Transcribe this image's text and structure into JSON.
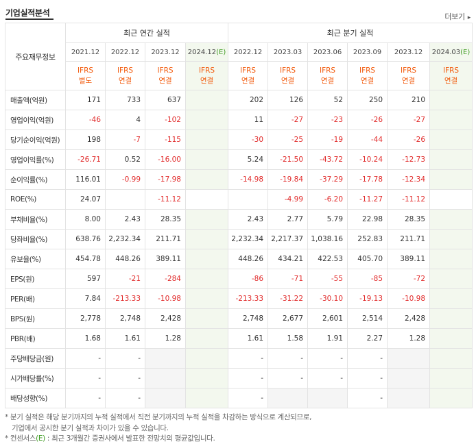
{
  "header": {
    "title": "기업실적분석",
    "more_label": "더보기",
    "more_arrow": "▸"
  },
  "table": {
    "corner_label": "주요재무정보",
    "groups": {
      "annual": "최근 연간 실적",
      "quarter": "최근 분기 실적"
    },
    "periods": [
      {
        "year": "2021.12",
        "est": ""
      },
      {
        "year": "2022.12",
        "est": ""
      },
      {
        "year": "2023.12",
        "est": ""
      },
      {
        "year": "2024.12",
        "est": "(E)"
      },
      {
        "year": "2022.12",
        "est": ""
      },
      {
        "year": "2023.03",
        "est": ""
      },
      {
        "year": "2023.06",
        "est": ""
      },
      {
        "year": "2023.09",
        "est": ""
      },
      {
        "year": "2023.12",
        "est": ""
      },
      {
        "year": "2024.03",
        "est": "(E)"
      }
    ],
    "ifrs": [
      {
        "l1": "IFRS",
        "l2": "별도"
      },
      {
        "l1": "IFRS",
        "l2": "연결"
      },
      {
        "l1": "IFRS",
        "l2": "연결"
      },
      {
        "l1": "IFRS",
        "l2": "연결"
      },
      {
        "l1": "IFRS",
        "l2": "연결"
      },
      {
        "l1": "IFRS",
        "l2": "연결"
      },
      {
        "l1": "IFRS",
        "l2": "연결"
      },
      {
        "l1": "IFRS",
        "l2": "연결"
      },
      {
        "l1": "IFRS",
        "l2": "연결"
      },
      {
        "l1": "IFRS",
        "l2": "연결"
      }
    ],
    "rows": [
      {
        "label": "매출액(억원)",
        "values": [
          "171",
          "733",
          "637",
          "",
          "202",
          "126",
          "52",
          "250",
          "210",
          ""
        ]
      },
      {
        "label": "영업이익(억원)",
        "values": [
          "-46",
          "4",
          "-102",
          "",
          "11",
          "-27",
          "-23",
          "-26",
          "-27",
          ""
        ]
      },
      {
        "label": "당기순이익(억원)",
        "values": [
          "198",
          "-7",
          "-115",
          "",
          "-30",
          "-25",
          "-19",
          "-44",
          "-26",
          ""
        ]
      },
      {
        "label": "영업이익률(%)",
        "values": [
          "-26.71",
          "0.52",
          "-16.00",
          "",
          "5.24",
          "-21.50",
          "-43.72",
          "-10.24",
          "-12.73",
          ""
        ]
      },
      {
        "label": "순이익률(%)",
        "values": [
          "116.01",
          "-0.99",
          "-17.98",
          "",
          "-14.98",
          "-19.84",
          "-37.29",
          "-17.78",
          "-12.34",
          ""
        ]
      },
      {
        "label": "ROE(%)",
        "values": [
          "24.07",
          "",
          "-11.12",
          "",
          "",
          "-4.99",
          "-6.20",
          "-11.27",
          "-11.12",
          ""
        ]
      },
      {
        "label": "부채비율(%)",
        "values": [
          "8.00",
          "2.43",
          "28.35",
          "",
          "2.43",
          "2.77",
          "5.79",
          "22.98",
          "28.35",
          ""
        ]
      },
      {
        "label": "당좌비율(%)",
        "values": [
          "638.76",
          "2,232.34",
          "211.71",
          "",
          "2,232.34",
          "2,217.37",
          "1,038.16",
          "252.83",
          "211.71",
          ""
        ]
      },
      {
        "label": "유보율(%)",
        "values": [
          "454.78",
          "448.26",
          "389.11",
          "",
          "448.26",
          "434.21",
          "422.53",
          "405.70",
          "389.11",
          ""
        ]
      },
      {
        "label": "EPS(원)",
        "values": [
          "597",
          "-21",
          "-284",
          "",
          "-86",
          "-71",
          "-55",
          "-85",
          "-72",
          ""
        ]
      },
      {
        "label": "PER(배)",
        "values": [
          "7.84",
          "-213.33",
          "-10.98",
          "",
          "-213.33",
          "-31.22",
          "-30.10",
          "-19.13",
          "-10.98",
          ""
        ]
      },
      {
        "label": "BPS(원)",
        "values": [
          "2,778",
          "2,748",
          "2,428",
          "",
          "2,748",
          "2,677",
          "2,601",
          "2,514",
          "2,428",
          ""
        ]
      },
      {
        "label": "PBR(배)",
        "values": [
          "1.68",
          "1.61",
          "1.28",
          "",
          "1.61",
          "1.58",
          "1.91",
          "2.27",
          "1.28",
          ""
        ]
      },
      {
        "label": "주당배당금(원)",
        "values": [
          "-",
          "-",
          "",
          "",
          "-",
          "-",
          "-",
          "-",
          "",
          ""
        ]
      },
      {
        "label": "시가배당률(%)",
        "values": [
          "-",
          "-",
          "",
          "",
          "-",
          "-",
          "-",
          "-",
          "",
          ""
        ]
      },
      {
        "label": "배당성향(%)",
        "values": [
          "-",
          "-",
          "",
          "",
          "-",
          "",
          "",
          "-",
          "",
          ""
        ]
      }
    ]
  },
  "notes": {
    "line1": "* 분기 실적은 해당 분기까지의 누적 실적에서 직전 분기까지의 누적 실적을 차감하는 방식으로 계산되므로,",
    "line2": "기업에서 공시한 분기 실적과 차이가 있을 수 있습니다.",
    "line3_prefix": "* 컨센서스",
    "line3_e": "(E)",
    "line3_rest": " : 최근 3개월간 증권사에서 발표한 전망치의 평균값입니다."
  },
  "colors": {
    "ifrs": "#f25a0c",
    "negative": "#e12a2a",
    "estimate_bg": "#f3f8ee",
    "blank_bg": "#f5f5f5"
  }
}
